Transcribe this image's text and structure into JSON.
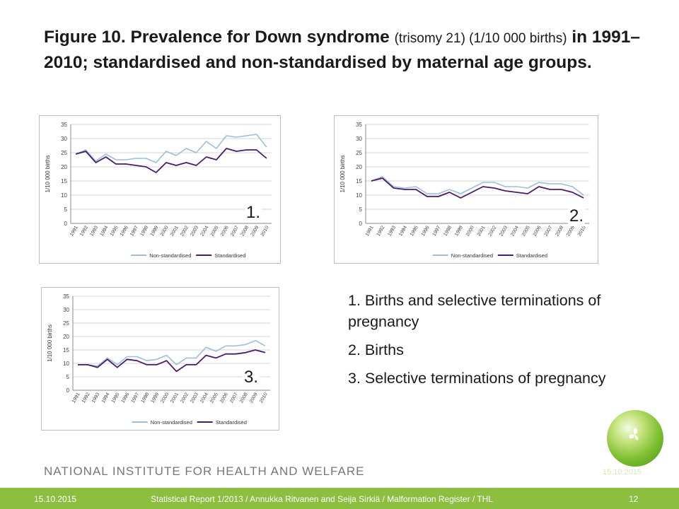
{
  "title": {
    "part1": "Figure 10. Prevalence for Down syndrome",
    "part2": "(trisomy 21) (1/10 000 births)",
    "part3": "in 1991–2010; standardised and non-standardised by maternal age groups."
  },
  "chart_data": [
    {
      "type": "line",
      "panel_label": "1.",
      "x": [
        "1991",
        "1992",
        "1993",
        "1994",
        "1995",
        "1996",
        "1997",
        "1998",
        "1999",
        "2000",
        "2001",
        "2002",
        "2003",
        "2004",
        "2005",
        "2006",
        "2007",
        "2008",
        "2009",
        "2010"
      ],
      "series": [
        {
          "name": "Non-standardised",
          "color": "#9bbfd9",
          "values": [
            24.5,
            26,
            22,
            24.5,
            22.5,
            22.5,
            23,
            23,
            21.5,
            25.5,
            24,
            26.5,
            25,
            29,
            26.5,
            31,
            30.5,
            31,
            31.5,
            27
          ]
        },
        {
          "name": "Standardised",
          "color": "#4a1a6b",
          "values": [
            24.5,
            25.5,
            21.5,
            23.5,
            21,
            21,
            20.5,
            20,
            18,
            21.5,
            20.5,
            21.5,
            20.5,
            23.5,
            22.5,
            26.5,
            25.5,
            26,
            26,
            23
          ]
        }
      ],
      "xlabel": "",
      "ylabel": "1/10 000 births",
      "ylim": [
        0,
        35
      ],
      "yticks": [
        0,
        5,
        10,
        15,
        20,
        25,
        30,
        35
      ],
      "grid": true,
      "legend": "bottom"
    },
    {
      "type": "line",
      "panel_label": "2.",
      "x": [
        "1991",
        "1992",
        "1993",
        "1994",
        "1995",
        "1996",
        "1997",
        "1998",
        "1999",
        "2000",
        "2001",
        "2002",
        "2003",
        "2004",
        "2005",
        "2006",
        "2007",
        "2008",
        "2009",
        "2010"
      ],
      "series": [
        {
          "name": "Non-standardised",
          "color": "#9bbfd9",
          "values": [
            15,
            16.5,
            13,
            12.5,
            13,
            10.5,
            10.5,
            12,
            10.5,
            12.5,
            14.5,
            14.5,
            13,
            13,
            12.5,
            14.5,
            14,
            14,
            13,
            10
          ]
        },
        {
          "name": "Standardised",
          "color": "#4a1a6b",
          "values": [
            15,
            16,
            12.5,
            12,
            12,
            9.5,
            9.5,
            11,
            9,
            11,
            13,
            12.5,
            11.5,
            11,
            10.5,
            13,
            12,
            12,
            11,
            9
          ]
        }
      ],
      "xlabel": "",
      "ylabel": "1/10 000 births",
      "ylim": [
        0,
        35
      ],
      "yticks": [
        0,
        5,
        10,
        15,
        20,
        25,
        30,
        35
      ],
      "grid": true,
      "legend": "bottom"
    },
    {
      "type": "line",
      "panel_label": "3.",
      "x": [
        "1991",
        "1992",
        "1993",
        "1994",
        "1995",
        "1996",
        "1997",
        "1998",
        "1999",
        "2000",
        "2001",
        "2002",
        "2003",
        "2004",
        "2005",
        "2006",
        "2007",
        "2008",
        "2009",
        "2010"
      ],
      "series": [
        {
          "name": "Non-standardised",
          "color": "#9bbfd9",
          "values": [
            9.5,
            9.5,
            9,
            12,
            9.5,
            12.5,
            12.5,
            11,
            11.5,
            13,
            9.5,
            12,
            12,
            16,
            14.5,
            16.5,
            16.5,
            17,
            18.5,
            16.5
          ]
        },
        {
          "name": "Standardised",
          "color": "#4a1a6b",
          "values": [
            9.5,
            9.5,
            8.5,
            11.5,
            8.5,
            11.5,
            11,
            9.5,
            9.5,
            11,
            7,
            9.5,
            9.5,
            13,
            12,
            13.5,
            13.5,
            14,
            15,
            14
          ]
        }
      ],
      "xlabel": "",
      "ylabel": "1/10 000 births",
      "ylim": [
        0,
        35
      ],
      "yticks": [
        0,
        5,
        10,
        15,
        20,
        25,
        30,
        35
      ],
      "grid": true,
      "legend": "bottom"
    }
  ],
  "notes": [
    "1. Births and selective terminations of pregnancy",
    "2. Births",
    "3. Selective terminations of pregnancy"
  ],
  "organization": "NATIONAL INSTITUTE FOR HEALTH AND WELFARE",
  "footer": {
    "date": "15.10.2015",
    "citation": "Statistical Report 1/2013 / Annukka Ritvanen and Seija Sirkiä / Malformation Register / THL",
    "page": "12"
  },
  "colors": {
    "accent": "#8cbf3f",
    "non_standardised": "#9bbfd9",
    "standardised": "#4a1a6b"
  }
}
